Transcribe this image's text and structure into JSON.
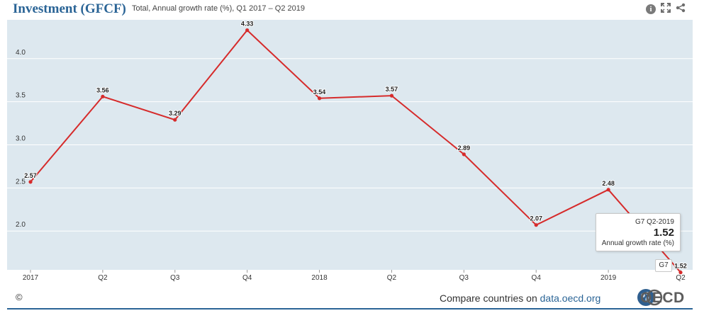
{
  "header": {
    "title": "Investment (GFCF)",
    "subtitle": "Total, Annual growth rate (%), Q1 2017 – Q2 2019",
    "tools": {
      "info_icon": "info-icon",
      "expand_icon": "expand-icon",
      "share_icon": "share-icon"
    }
  },
  "chart_data": {
    "type": "line",
    "categories": [
      "2017",
      "Q2",
      "Q3",
      "Q4",
      "2018",
      "Q2",
      "Q3",
      "Q4",
      "2019",
      "Q2"
    ],
    "series": [
      {
        "name": "G7",
        "values": [
          2.57,
          3.56,
          3.29,
          4.33,
          3.54,
          3.57,
          2.89,
          2.07,
          2.48,
          1.52
        ],
        "color": "#d62b2b"
      }
    ],
    "data_labels": [
      "2.57",
      "3.56",
      "3.29",
      "4.33",
      "3.54",
      "3.57",
      "2.89",
      "2.07",
      "2.48",
      "1.52"
    ],
    "ylim": [
      1.55,
      4.45
    ],
    "y_ticks": [
      2.0,
      2.5,
      3.0,
      3.5,
      4.0
    ],
    "y_tick_labels": [
      "2.0",
      "2.5",
      "3.0",
      "3.5",
      "4.0"
    ],
    "grid": true,
    "plot_background": "#dde8ef"
  },
  "tooltip": {
    "title": "G7 Q2-2019",
    "value": "1.52",
    "label": "Annual growth rate (%)"
  },
  "series_label": "G7",
  "footer": {
    "copyright": "©",
    "compare_prefix": "Compare countries on ",
    "compare_link": "data.oecd.org",
    "logo_text": "OECD"
  },
  "colors": {
    "accent": "#2a6496",
    "series": "#d62b2b"
  }
}
